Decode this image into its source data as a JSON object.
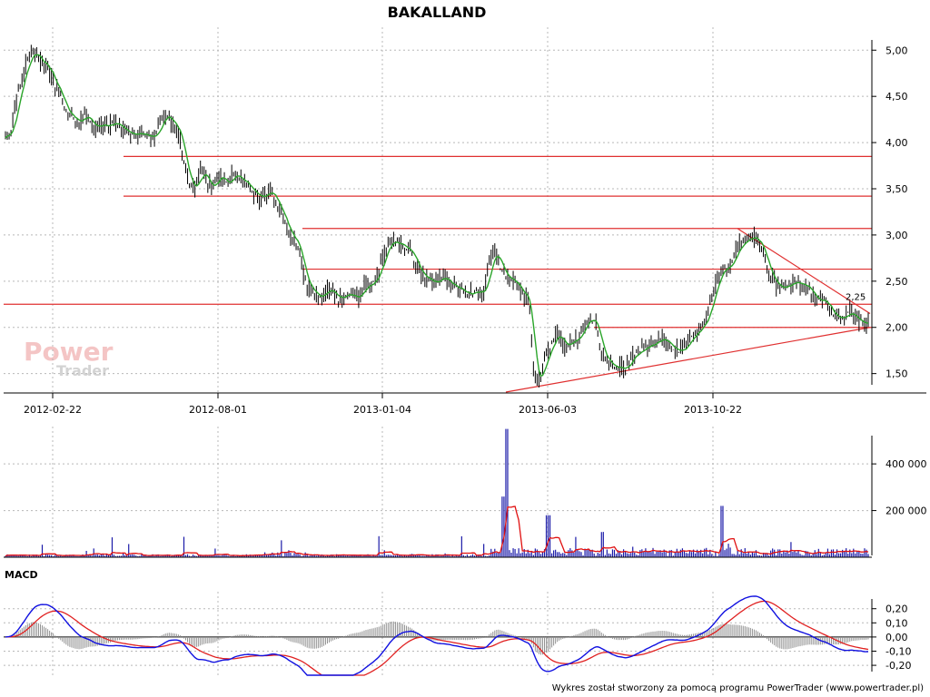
{
  "chart_data": [
    {
      "type": "line",
      "title": "BAKALLAND",
      "x_tick_labels": [
        "2012-02-22",
        "2012-08-01",
        "2013-01-04",
        "2013-06-03",
        "2013-10-22"
      ],
      "y_tick_labels": [
        "5,00",
        "4,50",
        "4,00",
        "3,50",
        "3,00",
        "2,50",
        "2,00",
        "1,50"
      ],
      "y_ticks": [
        5.0,
        4.5,
        4.0,
        3.5,
        3.0,
        2.5,
        2.0,
        1.5
      ],
      "ylim": [
        1.3,
        5.15
      ],
      "grid": true,
      "series_close": [
        4.05,
        4.15,
        4.45,
        4.7,
        4.9,
        5.0,
        4.9,
        4.85,
        4.75,
        4.6,
        4.5,
        4.3,
        4.3,
        4.2,
        4.3,
        4.25,
        4.15,
        4.2,
        4.2,
        4.2,
        4.2,
        4.15,
        4.1,
        4.1,
        4.1,
        4.05,
        4.05,
        4.1,
        4.25,
        4.3,
        4.2,
        4.15,
        3.8,
        3.55,
        3.5,
        3.7,
        3.6,
        3.5,
        3.65,
        3.6,
        3.55,
        3.7,
        3.6,
        3.6,
        3.5,
        3.45,
        3.4,
        3.45,
        3.45,
        3.3,
        3.2,
        3.0,
        2.95,
        2.75,
        2.45,
        2.4,
        2.3,
        2.35,
        2.4,
        2.35,
        2.3,
        2.35,
        2.35,
        2.3,
        2.4,
        2.45,
        2.5,
        2.6,
        2.8,
        2.95,
        2.9,
        2.9,
        2.85,
        2.8,
        2.65,
        2.55,
        2.55,
        2.45,
        2.55,
        2.55,
        2.45,
        2.45,
        2.4,
        2.35,
        2.35,
        2.4,
        2.4,
        2.7,
        2.85,
        2.6,
        2.55,
        2.5,
        2.45,
        2.35,
        2.3,
        1.4,
        1.5,
        1.65,
        1.8,
        1.95,
        1.85,
        1.8,
        1.85,
        1.9,
        2.05,
        2.1,
        2.05,
        1.75,
        1.65,
        1.6,
        1.55,
        1.55,
        1.6,
        1.7,
        1.75,
        1.8,
        1.8,
        1.85,
        1.9,
        1.85,
        1.75,
        1.75,
        1.8,
        1.9,
        1.95,
        2.0,
        2.1,
        2.35,
        2.55,
        2.65,
        2.65,
        2.8,
        2.9,
        2.95,
        3.0,
        2.95,
        2.85,
        2.6,
        2.5,
        2.4,
        2.45,
        2.45,
        2.5,
        2.45,
        2.45,
        2.35,
        2.3,
        2.3,
        2.2,
        2.1,
        2.1,
        2.15,
        2.15,
        2.1,
        2.05,
        2.05
      ],
      "series_ma_name": "",
      "horizontal_levels": [
        3.85,
        3.42,
        3.07,
        2.63,
        2.25,
        2.0
      ],
      "support_line": [
        [
          1.3,
          0.0
        ],
        [
          2.0,
          1.0
        ]
      ],
      "resistance_line": [
        [
          3.07,
          0.0
        ],
        [
          2.15,
          1.0
        ]
      ],
      "annotation_label": "2,25",
      "watermark": {
        "brand": "Power",
        "sub": "Trader"
      }
    },
    {
      "type": "bar",
      "title": "",
      "y_tick_labels": [
        "400 000",
        "200 000"
      ],
      "y_ticks": [
        400000,
        200000
      ],
      "ylim": [
        0,
        560000
      ],
      "peak_value": 560000,
      "grid": true
    },
    {
      "type": "line",
      "title": "MACD",
      "y_tick_labels": [
        "0,20",
        "0,10",
        "0,00",
        "-0,10",
        "-0,20"
      ],
      "y_ticks": [
        0.2,
        0.1,
        0.0,
        -0.1,
        -0.2
      ],
      "ylim": [
        -0.27,
        0.32
      ],
      "grid": true
    }
  ],
  "footer": "Wykres został stworzony za pomocą programu PowerTrader (www.powertrader.pl)",
  "colors": {
    "price": "#006400",
    "price_ma": "#2aa52a",
    "level": "#e03030",
    "volume": "#1a1aa8",
    "volume_ma": "#e01010",
    "macd": "#1010e0",
    "signal": "#e02020",
    "hist": "#909090",
    "watermark": "#f2a0a0"
  }
}
